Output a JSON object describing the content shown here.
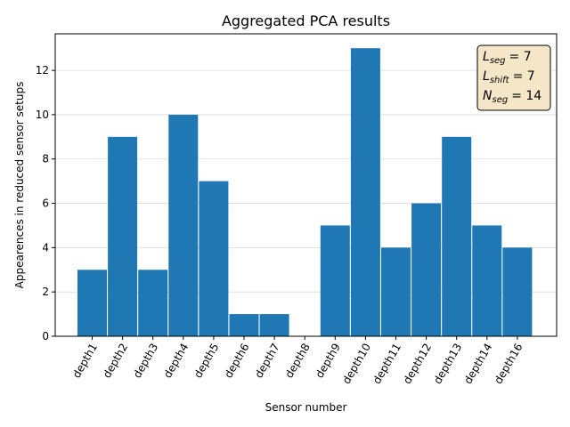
{
  "chart_data": {
    "type": "bar",
    "title": "Aggregated PCA results",
    "xlabel": "Sensor number",
    "ylabel": "Appearences in reduced sensor setups",
    "categories": [
      "depth1",
      "depth2",
      "depth3",
      "depth4",
      "depth5",
      "depth6",
      "depth7",
      "depth8",
      "depth9",
      "depth10",
      "depth11",
      "depth12",
      "depth13",
      "depth14",
      "depth16"
    ],
    "values": [
      3,
      9,
      3,
      10,
      7,
      1,
      1,
      0,
      5,
      13,
      4,
      6,
      9,
      5,
      4
    ],
    "ylim": [
      0,
      13.65
    ],
    "yticks": [
      0,
      2,
      4,
      6,
      8,
      10,
      12
    ],
    "grid": "y",
    "bar_color": "#1f77b4",
    "legend_placement": "top-right",
    "annotation": [
      {
        "symbol": "L",
        "subscript": "seg",
        "value": "= 7"
      },
      {
        "symbol": "L",
        "subscript": "shift",
        "value": "= 7"
      },
      {
        "symbol": "N",
        "subscript": "seg",
        "value": "= 14"
      }
    ],
    "annotation_box_color": "#f5e6c8"
  }
}
